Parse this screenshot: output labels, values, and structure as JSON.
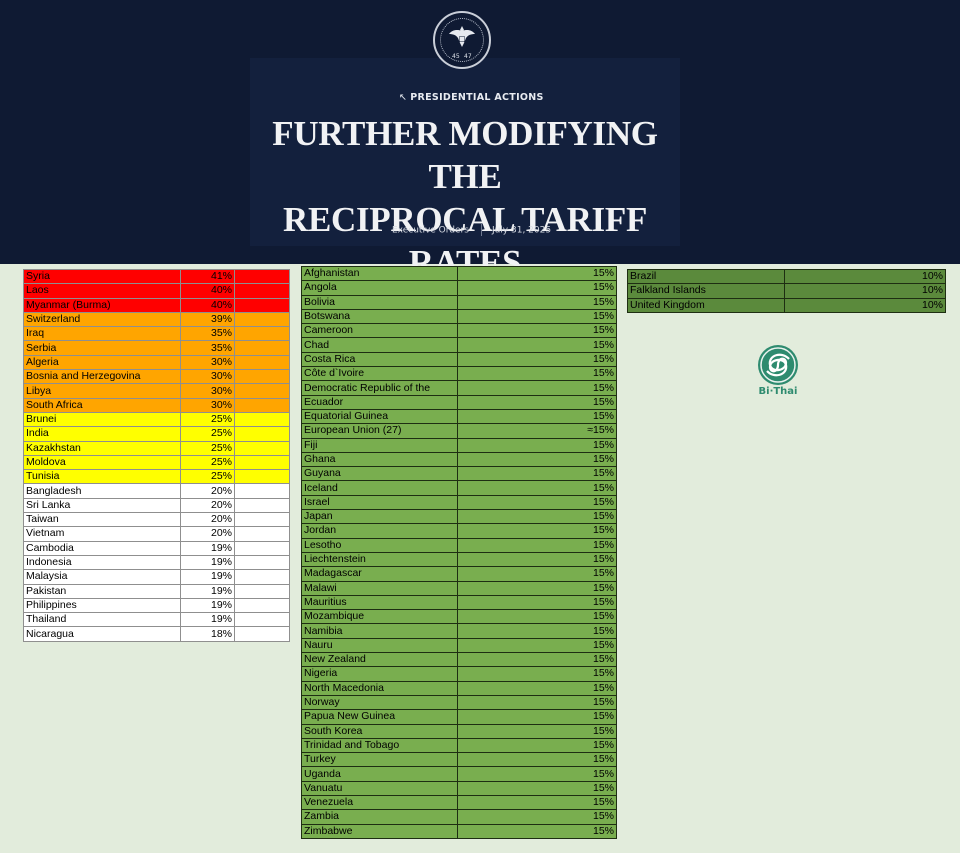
{
  "header": {
    "seal_numbers": [
      "45",
      "47"
    ],
    "section": "PRESIDENTIAL ACTIONS",
    "title_line1": "FURTHER MODIFYING THE",
    "title_line2": "RECIPROCAL TARIFF RATES",
    "category": "Executive Orders",
    "date": "July 31, 2025"
  },
  "colors": {
    "red": "#ff0000",
    "orange": "#ffa500",
    "yellow": "#ffff00",
    "white": "#ffffff",
    "green": "#79ae4f",
    "dark_green": "#5b8a3c"
  },
  "table_left": [
    {
      "country": "Syria",
      "rate": "41%",
      "tier": "red"
    },
    {
      "country": "Laos",
      "rate": "40%",
      "tier": "red"
    },
    {
      "country": "Myanmar (Burma)",
      "rate": "40%",
      "tier": "red"
    },
    {
      "country": "Switzerland",
      "rate": "39%",
      "tier": "orange"
    },
    {
      "country": "Iraq",
      "rate": "35%",
      "tier": "orange"
    },
    {
      "country": "Serbia",
      "rate": "35%",
      "tier": "orange"
    },
    {
      "country": "Algeria",
      "rate": "30%",
      "tier": "orange"
    },
    {
      "country": "Bosnia and Herzegovina",
      "rate": "30%",
      "tier": "orange"
    },
    {
      "country": "Libya",
      "rate": "30%",
      "tier": "orange"
    },
    {
      "country": "South Africa",
      "rate": "30%",
      "tier": "orange"
    },
    {
      "country": "Brunei",
      "rate": "25%",
      "tier": "yellow"
    },
    {
      "country": "India",
      "rate": "25%",
      "tier": "yellow"
    },
    {
      "country": "Kazakhstan",
      "rate": "25%",
      "tier": "yellow"
    },
    {
      "country": "Moldova",
      "rate": "25%",
      "tier": "yellow"
    },
    {
      "country": "Tunisia",
      "rate": "25%",
      "tier": "yellow"
    },
    {
      "country": "Bangladesh",
      "rate": "20%",
      "tier": "white"
    },
    {
      "country": "Sri Lanka",
      "rate": "20%",
      "tier": "white"
    },
    {
      "country": "Taiwan",
      "rate": "20%",
      "tier": "white"
    },
    {
      "country": "Vietnam",
      "rate": "20%",
      "tier": "white"
    },
    {
      "country": "Cambodia",
      "rate": "19%",
      "tier": "white"
    },
    {
      "country": "Indonesia",
      "rate": "19%",
      "tier": "white"
    },
    {
      "country": "Malaysia",
      "rate": "19%",
      "tier": "white"
    },
    {
      "country": "Pakistan",
      "rate": "19%",
      "tier": "white"
    },
    {
      "country": "Philippines",
      "rate": "19%",
      "tier": "white"
    },
    {
      "country": "Thailand",
      "rate": "19%",
      "tier": "white"
    },
    {
      "country": "Nicaragua",
      "rate": "18%",
      "tier": "white"
    }
  ],
  "table_middle": [
    {
      "country": "Afghanistan",
      "rate": "15%"
    },
    {
      "country": "Angola",
      "rate": "15%"
    },
    {
      "country": "Bolivia",
      "rate": "15%"
    },
    {
      "country": "Botswana",
      "rate": "15%"
    },
    {
      "country": "Cameroon",
      "rate": "15%"
    },
    {
      "country": "Chad",
      "rate": "15%"
    },
    {
      "country": "Costa Rica",
      "rate": "15%"
    },
    {
      "country": "Côte d`Ivoire",
      "rate": "15%"
    },
    {
      "country": "Democratic Republic of the",
      "rate": "15%"
    },
    {
      "country": "Ecuador",
      "rate": "15%"
    },
    {
      "country": "Equatorial Guinea",
      "rate": "15%"
    },
    {
      "country": "European Union (27)",
      "rate": "≈15%"
    },
    {
      "country": "Fiji",
      "rate": "15%"
    },
    {
      "country": "Ghana",
      "rate": "15%"
    },
    {
      "country": "Guyana",
      "rate": "15%"
    },
    {
      "country": "Iceland",
      "rate": "15%"
    },
    {
      "country": "Israel",
      "rate": "15%"
    },
    {
      "country": "Japan",
      "rate": "15%"
    },
    {
      "country": "Jordan",
      "rate": "15%"
    },
    {
      "country": "Lesotho",
      "rate": "15%"
    },
    {
      "country": "Liechtenstein",
      "rate": "15%"
    },
    {
      "country": "Madagascar",
      "rate": "15%"
    },
    {
      "country": "Malawi",
      "rate": "15%"
    },
    {
      "country": "Mauritius",
      "rate": "15%"
    },
    {
      "country": "Mozambique",
      "rate": "15%"
    },
    {
      "country": "Namibia",
      "rate": "15%"
    },
    {
      "country": "Nauru",
      "rate": "15%"
    },
    {
      "country": "New Zealand",
      "rate": "15%"
    },
    {
      "country": "Nigeria",
      "rate": "15%"
    },
    {
      "country": "North Macedonia",
      "rate": "15%"
    },
    {
      "country": "Norway",
      "rate": "15%"
    },
    {
      "country": "Papua New Guinea",
      "rate": "15%"
    },
    {
      "country": "South Korea",
      "rate": "15%"
    },
    {
      "country": "Trinidad and Tobago",
      "rate": "15%"
    },
    {
      "country": "Turkey",
      "rate": "15%"
    },
    {
      "country": "Uganda",
      "rate": "15%"
    },
    {
      "country": "Vanuatu",
      "rate": "15%"
    },
    {
      "country": "Venezuela",
      "rate": "15%"
    },
    {
      "country": "Zambia",
      "rate": "15%"
    },
    {
      "country": "Zimbabwe",
      "rate": "15%"
    }
  ],
  "table_right": [
    {
      "country": "Brazil",
      "rate": "10%"
    },
    {
      "country": "Falkland Islands",
      "rate": "10%"
    },
    {
      "country": "United Kingdom",
      "rate": "10%"
    }
  ],
  "logo": {
    "text": "Bi·Thai",
    "icon": "spiral-logo-icon"
  }
}
